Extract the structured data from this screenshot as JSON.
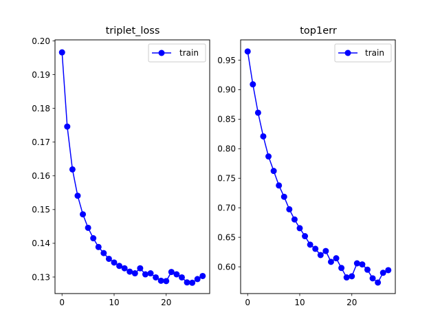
{
  "chart_data": [
    {
      "type": "line",
      "title": "triplet_loss",
      "xlabel": "",
      "ylabel": "",
      "xlim": [
        -1.35,
        28.35
      ],
      "ylim": [
        0.1251,
        0.2003
      ],
      "xticks": [
        0,
        10,
        20
      ],
      "xtick_labels": [
        "0",
        "10",
        "20"
      ],
      "yticks": [
        0.13,
        0.14,
        0.15,
        0.16,
        0.17,
        0.18,
        0.19,
        0.2
      ],
      "ytick_labels": [
        "0.13",
        "0.14",
        "0.15",
        "0.16",
        "0.17",
        "0.18",
        "0.19",
        "0.20"
      ],
      "legend": "top-right",
      "grid": false,
      "series": [
        {
          "name": "train",
          "color": "#0000ff",
          "marker": "circle",
          "x": [
            0,
            1,
            2,
            3,
            4,
            5,
            6,
            7,
            8,
            9,
            10,
            11,
            12,
            13,
            14,
            15,
            16,
            17,
            18,
            19,
            20,
            21,
            22,
            23,
            24,
            25,
            26,
            27
          ],
          "y": [
            0.1966,
            0.1746,
            0.1619,
            0.1541,
            0.1486,
            0.1446,
            0.1415,
            0.1389,
            0.1371,
            0.1354,
            0.1343,
            0.1333,
            0.1326,
            0.1316,
            0.1311,
            0.1326,
            0.1308,
            0.1311,
            0.1299,
            0.1289,
            0.1288,
            0.1315,
            0.1308,
            0.1299,
            0.1284,
            0.1283,
            0.1294,
            0.1303
          ]
        }
      ]
    },
    {
      "type": "line",
      "title": "top1err",
      "xlabel": "",
      "ylabel": "",
      "xlim": [
        -1.35,
        28.35
      ],
      "ylim": [
        0.5547,
        0.9843
      ],
      "xticks": [
        0,
        10,
        20
      ],
      "xtick_labels": [
        "0",
        "10",
        "20"
      ],
      "yticks": [
        0.6,
        0.65,
        0.7,
        0.75,
        0.8,
        0.85,
        0.9,
        0.95
      ],
      "ytick_labels": [
        "0.60",
        "0.65",
        "0.70",
        "0.75",
        "0.80",
        "0.85",
        "0.90",
        "0.95"
      ],
      "legend": "top-right",
      "grid": false,
      "series": [
        {
          "name": "train",
          "color": "#0000ff",
          "marker": "circle",
          "x": [
            0,
            1,
            2,
            3,
            4,
            5,
            6,
            7,
            8,
            9,
            10,
            11,
            12,
            13,
            14,
            15,
            16,
            17,
            18,
            19,
            20,
            21,
            22,
            23,
            24,
            25,
            26,
            27
          ],
          "y": [
            0.9647,
            0.909,
            0.8609,
            0.8209,
            0.7869,
            0.7623,
            0.7377,
            0.7186,
            0.6974,
            0.6802,
            0.6654,
            0.6519,
            0.6375,
            0.6305,
            0.6199,
            0.6268,
            0.6084,
            0.6145,
            0.598,
            0.582,
            0.584,
            0.6059,
            0.6041,
            0.5951,
            0.5805,
            0.5734,
            0.5899,
            0.5943
          ]
        }
      ]
    }
  ]
}
